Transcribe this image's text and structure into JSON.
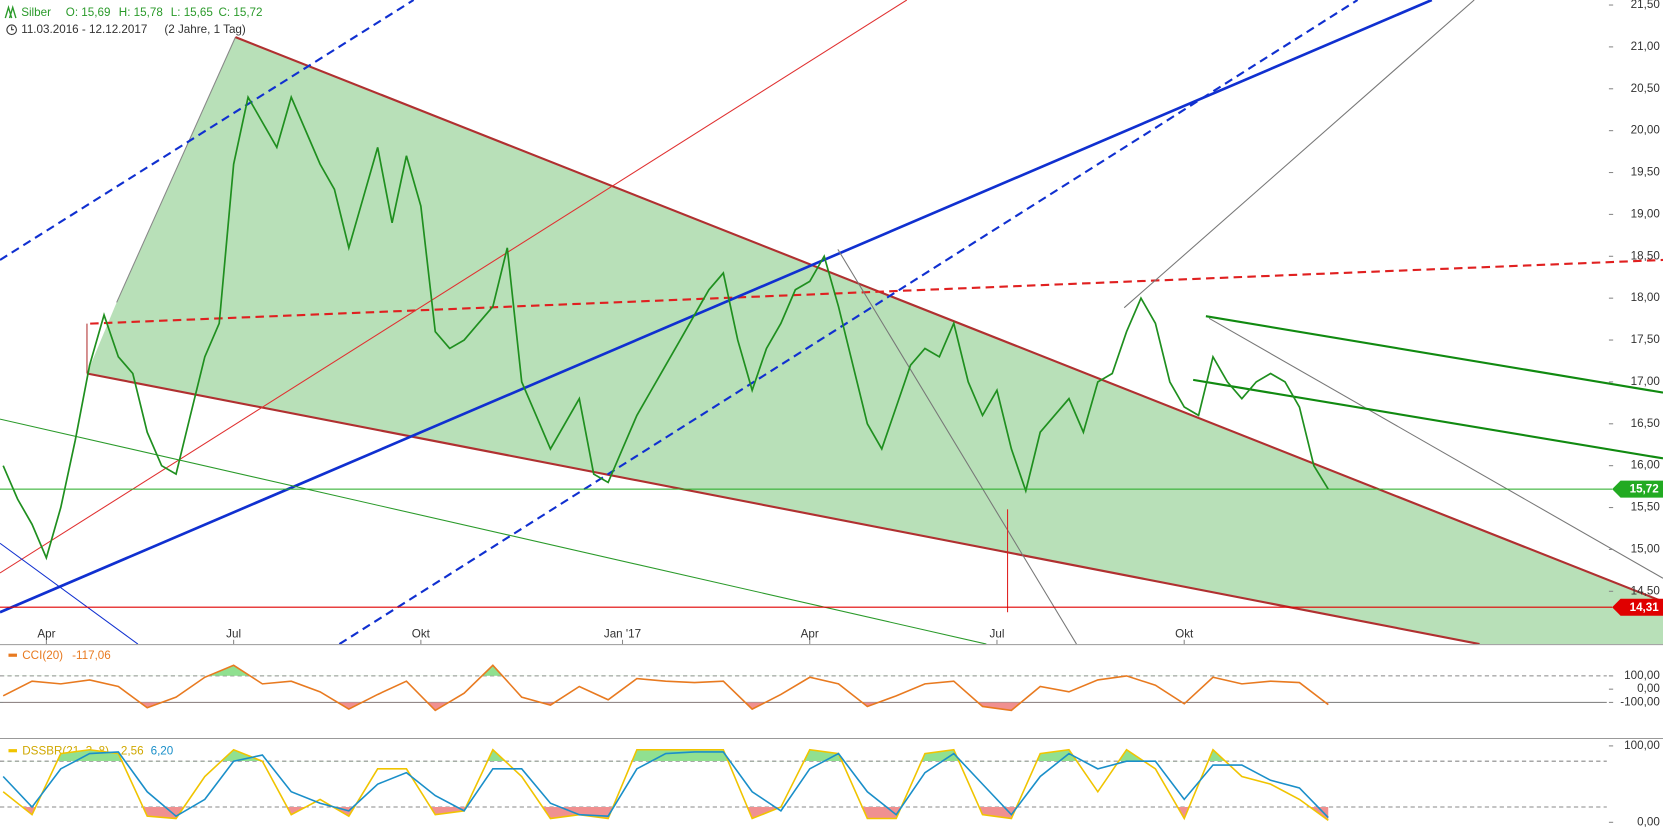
{
  "chart_data": [
    {
      "type": "line",
      "instrument": "Silber",
      "ohlc": [
        "O: 15,69",
        "H: 15,78",
        "L: 15,65",
        "C: 15,72"
      ],
      "range": "11.03.2016 - 12.12.2017",
      "period": "(2 Jahre, 1 Tag)",
      "categories": [
        null,
        null,
        null,
        "Apr",
        null,
        null,
        null,
        null,
        null,
        null,
        null,
        null,
        null,
        null,
        null,
        null,
        "Jul",
        null,
        null,
        null,
        null,
        null,
        null,
        null,
        null,
        null,
        null,
        null,
        null,
        "Okt",
        null,
        null,
        null,
        null,
        null,
        null,
        null,
        null,
        null,
        null,
        null,
        null,
        null,
        "Jan '17",
        null,
        null,
        null,
        null,
        null,
        null,
        null,
        null,
        null,
        null,
        null,
        null,
        "Apr",
        null,
        null,
        null,
        null,
        null,
        null,
        null,
        null,
        null,
        null,
        null,
        null,
        "Jul",
        null,
        null,
        null,
        null,
        null,
        null,
        null,
        null,
        null,
        null,
        null,
        null,
        "Okt",
        null,
        null,
        null,
        null,
        null,
        null,
        null,
        null,
        null,
        null
      ],
      "values": [
        16.0,
        15.6,
        15.3,
        14.9,
        15.5,
        16.3,
        17.2,
        17.8,
        17.3,
        17.1,
        16.4,
        16.0,
        15.9,
        16.6,
        17.3,
        17.7,
        19.6,
        20.4,
        20.1,
        19.8,
        20.4,
        20.0,
        19.6,
        19.3,
        18.6,
        19.2,
        19.8,
        18.9,
        19.7,
        19.1,
        17.6,
        17.4,
        17.5,
        17.7,
        17.9,
        18.6,
        17.0,
        16.6,
        16.2,
        16.5,
        16.8,
        15.9,
        15.8,
        16.2,
        16.6,
        16.9,
        17.2,
        17.5,
        17.8,
        18.1,
        18.3,
        17.5,
        16.9,
        17.4,
        17.7,
        18.1,
        18.2,
        18.5,
        17.9,
        17.2,
        16.5,
        16.2,
        16.7,
        17.2,
        17.4,
        17.3,
        17.7,
        17.0,
        16.6,
        16.9,
        16.2,
        15.7,
        16.4,
        16.6,
        16.8,
        16.4,
        17.0,
        17.1,
        17.6,
        18.0,
        17.7,
        17.0,
        16.7,
        16.6,
        17.3,
        17.0,
        16.8,
        17.0,
        17.1,
        17.0,
        16.7,
        16.0,
        15.72
      ],
      "color": "#1f8f1f",
      "ylim": [
        13.87,
        21.56
      ],
      "yticks": [
        {
          "value": 14.5,
          "label": "14,50"
        },
        {
          "value": 15,
          "label": "15,00"
        },
        {
          "value": 15.5,
          "label": "15,50"
        },
        {
          "value": 16,
          "label": "16,00"
        },
        {
          "value": 16.5,
          "label": "16,50"
        },
        {
          "value": 17,
          "label": "17,00"
        },
        {
          "value": 17.5,
          "label": "17,50"
        },
        {
          "value": 18,
          "label": "18,00"
        },
        {
          "value": 18.5,
          "label": "18,50"
        },
        {
          "value": 19,
          "label": "19,00"
        },
        {
          "value": 19.5,
          "label": "19,50"
        },
        {
          "value": 20,
          "label": "20,00"
        },
        {
          "value": 20.5,
          "label": "20,50"
        },
        {
          "value": 21,
          "label": "21,00"
        },
        {
          "value": 21.5,
          "label": "21,50"
        }
      ],
      "annotations": [
        {
          "value": 15.72,
          "label": "15,72",
          "color": "#22aa22"
        },
        {
          "value": 14.31,
          "label": "14,31",
          "color": "#e00000"
        }
      ]
    },
    {
      "type": "line",
      "title": "CCI(20)",
      "last_label": "-117,06",
      "color": "#e87a20",
      "values": [
        -50,
        60,
        40,
        70,
        20,
        -140,
        -60,
        90,
        180,
        40,
        60,
        -20,
        -150,
        -40,
        60,
        -160,
        -30,
        180,
        -60,
        -120,
        20,
        -80,
        80,
        60,
        50,
        60,
        -150,
        -40,
        90,
        40,
        -130,
        -50,
        40,
        60,
        -130,
        -160,
        20,
        -20,
        70,
        100,
        30,
        -110,
        90,
        40,
        60,
        50,
        -117.06
      ],
      "ylim": [
        -364,
        324
      ],
      "yticks": [
        {
          "value": 100,
          "label": "100,00"
        },
        {
          "value": 0,
          "label": "0,00"
        },
        {
          "value": -100,
          "label": "-100,00"
        }
      ],
      "levels": [
        100,
        -100
      ],
      "fill_colors": [
        "#90e090",
        "#f09090"
      ]
    },
    {
      "type": "line",
      "title": "DSSBR(21, 3, 8)",
      "series": [
        {
          "color": "#f0c400",
          "last_label": "2,56",
          "values": [
            40,
            10,
            90,
            95,
            90,
            8,
            5,
            60,
            95,
            80,
            10,
            30,
            8,
            70,
            70,
            10,
            15,
            95,
            60,
            5,
            10,
            5,
            95,
            95,
            95,
            95,
            5,
            20,
            95,
            90,
            5,
            5,
            90,
            95,
            10,
            5,
            90,
            95,
            40,
            95,
            70,
            5,
            95,
            60,
            50,
            30,
            2.56
          ]
        },
        {
          "color": "#1a8fc9",
          "last_label": "6,20",
          "values": [
            60,
            20,
            70,
            90,
            92,
            40,
            8,
            30,
            80,
            88,
            40,
            25,
            15,
            50,
            65,
            35,
            15,
            70,
            70,
            25,
            10,
            8,
            70,
            90,
            92,
            92,
            40,
            15,
            70,
            90,
            40,
            10,
            65,
            90,
            50,
            10,
            60,
            90,
            70,
            80,
            80,
            30,
            75,
            75,
            55,
            45,
            6.2
          ]
        }
      ],
      "ylim": [
        -15.3,
        108.3
      ],
      "yticks": [
        {
          "value": 100,
          "label": "100,00"
        },
        {
          "value": 0,
          "label": "0,00"
        }
      ],
      "levels": [
        80,
        20
      ],
      "fill_colors": [
        "#90e090",
        "#f09090"
      ]
    }
  ]
}
